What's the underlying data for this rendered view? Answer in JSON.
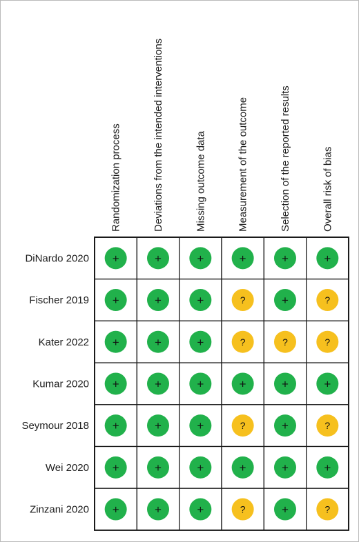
{
  "colors": {
    "low": "#21b14b",
    "some_concerns": "#f6c01e",
    "border": "#1a1a1a"
  },
  "symbols": {
    "low": "+",
    "some_concerns": "?"
  },
  "columns": [
    "Randomization process",
    "Deviations from the intended interventions",
    "Missing outcome data",
    "Measurement of the outcome",
    "Selection of the reported results",
    "Overall risk of bias"
  ],
  "rows": [
    {
      "study": "DiNardo 2020",
      "judgements": [
        "low",
        "low",
        "low",
        "low",
        "low",
        "low"
      ]
    },
    {
      "study": "Fischer 2019",
      "judgements": [
        "low",
        "low",
        "low",
        "some_concerns",
        "low",
        "some_concerns"
      ]
    },
    {
      "study": "Kater 2022",
      "judgements": [
        "low",
        "low",
        "low",
        "some_concerns",
        "some_concerns",
        "some_concerns"
      ]
    },
    {
      "study": "Kumar 2020",
      "judgements": [
        "low",
        "low",
        "low",
        "low",
        "low",
        "low"
      ]
    },
    {
      "study": "Seymour 2018",
      "judgements": [
        "low",
        "low",
        "low",
        "some_concerns",
        "low",
        "some_concerns"
      ]
    },
    {
      "study": "Wei 2020",
      "judgements": [
        "low",
        "low",
        "low",
        "low",
        "low",
        "low"
      ]
    },
    {
      "study": "Zinzani 2020",
      "judgements": [
        "low",
        "low",
        "low",
        "some_concerns",
        "low",
        "some_concerns"
      ]
    }
  ]
}
